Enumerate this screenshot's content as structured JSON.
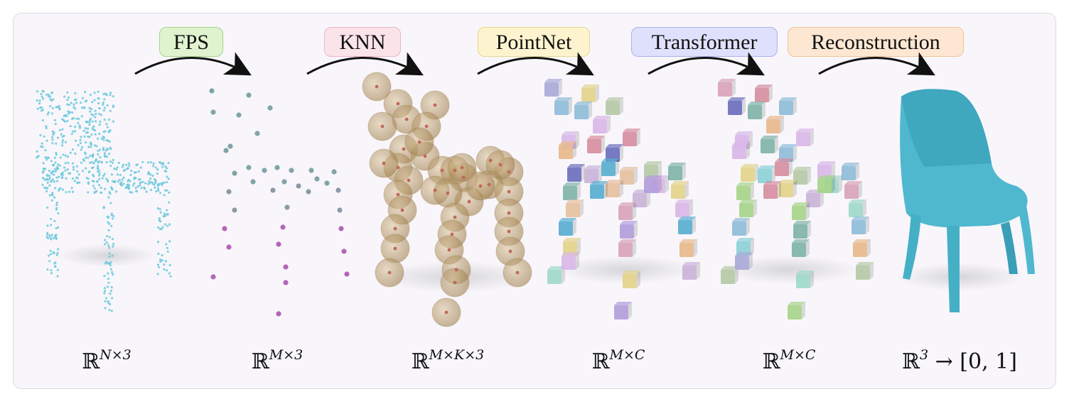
{
  "stages": [
    {
      "label": "FPS",
      "bg": "#dff3cf",
      "border": "#a6d489"
    },
    {
      "label": "KNN",
      "bg": "#fbe3ea",
      "border": "#eab6c6"
    },
    {
      "label": "PointNet",
      "bg": "#fdf4cf",
      "border": "#ead48e"
    },
    {
      "label": "Transformer",
      "bg": "#dfe0fb",
      "border": "#aeb1ea"
    },
    {
      "label": "Reconstruction",
      "bg": "#fde7d2",
      "border": "#eec39a"
    }
  ],
  "shapes": [
    {
      "prefix": "ℝ",
      "sup": "N×3"
    },
    {
      "prefix": "ℝ",
      "sup": "M×3"
    },
    {
      "prefix": "ℝ",
      "sup": "M×K×3"
    },
    {
      "prefix": "ℝ",
      "sup": "M×C"
    },
    {
      "prefix": "ℝ",
      "sup": "M×C"
    },
    {
      "prefix": "ℝ",
      "sup": "3",
      "suffix": " → [0, 1]"
    }
  ],
  "colors": {
    "point": "#6cc9dc",
    "sphere": "#b89a6a",
    "mesh": "#4fb8cf",
    "arrow": "#111111"
  }
}
